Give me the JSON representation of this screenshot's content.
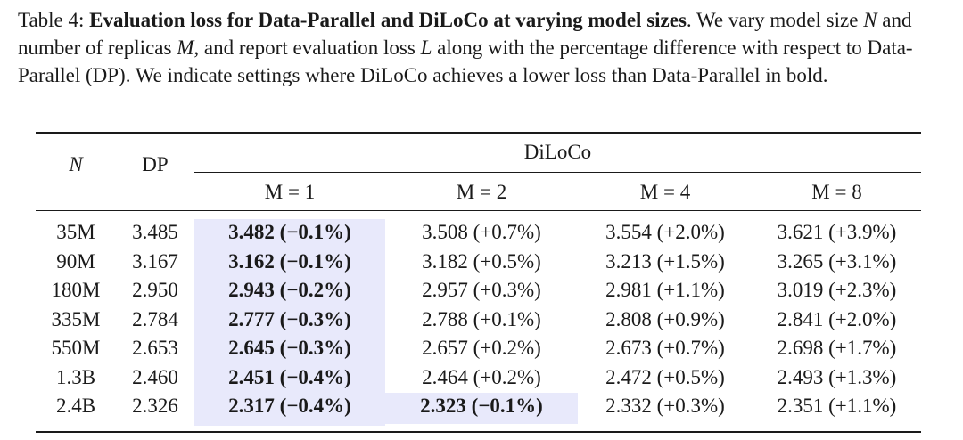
{
  "caption": {
    "label": "Table 4:",
    "title": "Evaluation loss for Data-Parallel and DiLoCo at varying model sizes",
    "text1": ". We vary model size ",
    "N": "N",
    "text2": " and number of replicas ",
    "M": "M",
    "text3": ", and report evaluation loss ",
    "L": "L",
    "text4": " along with the percentage difference with respect to Data-Parallel (DP). We indicate settings where DiLoCo achieves a lower loss than Data-Parallel in bold."
  },
  "table": {
    "header_n": "N",
    "header_dp": "DP",
    "header_group": "DiLoCo",
    "sub_headers": [
      "M = 1",
      "M = 2",
      "M = 4",
      "M = 8"
    ],
    "rows": [
      {
        "n": "35M",
        "dp": "3.485",
        "m1": "3.482",
        "m1p": "(−0.1%)",
        "m2": "3.508",
        "m2p": "(+0.7%)",
        "m4": "3.554",
        "m4p": "(+2.0%)",
        "m8": "3.621",
        "m8p": "(+3.9%)"
      },
      {
        "n": "90M",
        "dp": "3.167",
        "m1": "3.162",
        "m1p": "(−0.1%)",
        "m2": "3.182",
        "m2p": "(+0.5%)",
        "m4": "3.213",
        "m4p": "(+1.5%)",
        "m8": "3.265",
        "m8p": "(+3.1%)"
      },
      {
        "n": "180M",
        "dp": "2.950",
        "m1": "2.943",
        "m1p": "(−0.2%)",
        "m2": "2.957",
        "m2p": "(+0.3%)",
        "m4": "2.981",
        "m4p": "(+1.1%)",
        "m8": "3.019",
        "m8p": "(+2.3%)"
      },
      {
        "n": "335M",
        "dp": "2.784",
        "m1": "2.777",
        "m1p": "(−0.3%)",
        "m2": "2.788",
        "m2p": "(+0.1%)",
        "m4": "2.808",
        "m4p": "(+0.9%)",
        "m8": "2.841",
        "m8p": "(+2.0%)"
      },
      {
        "n": "550M",
        "dp": "2.653",
        "m1": "2.645",
        "m1p": "(−0.3%)",
        "m2": "2.657",
        "m2p": "(+0.2%)",
        "m4": "2.673",
        "m4p": "(+0.7%)",
        "m8": "2.698",
        "m8p": "(+1.7%)"
      },
      {
        "n": "1.3B",
        "dp": "2.460",
        "m1": "2.451",
        "m1p": "(−0.4%)",
        "m2": "2.464",
        "m2p": "(+0.2%)",
        "m4": "2.472",
        "m4p": "(+0.5%)",
        "m8": "2.493",
        "m8p": "(+1.3%)"
      },
      {
        "n": "2.4B",
        "dp": "2.326",
        "m1": "2.317",
        "m1p": "(−0.4%)",
        "m2": "2.323",
        "m2p": "(−0.1%)",
        "m4": "2.332",
        "m4p": "(+0.3%)",
        "m8": "2.351",
        "m8p": "(+1.1%)"
      }
    ],
    "highlight_color": "#e8e9fb"
  }
}
